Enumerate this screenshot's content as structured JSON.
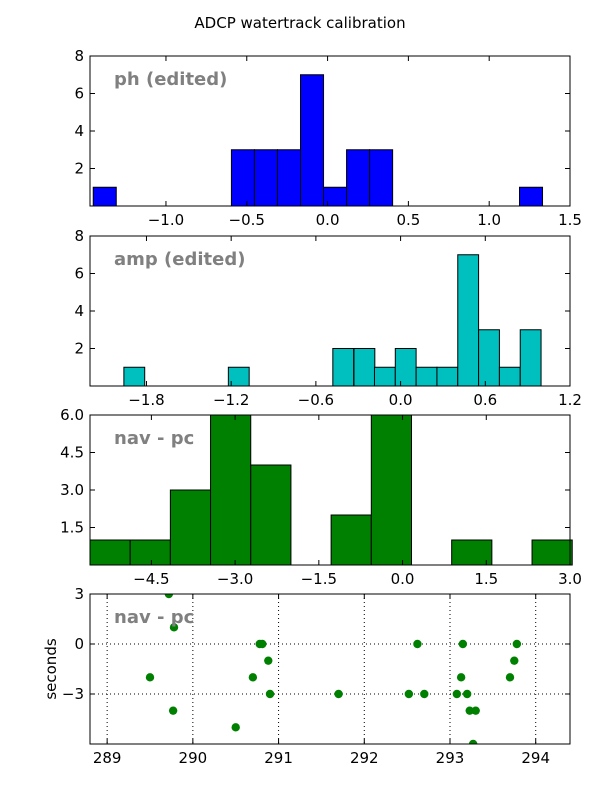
{
  "figure": {
    "title": "ADCP watertrack calibration"
  },
  "chart_data": [
    {
      "type": "bar",
      "panel_label": "ph (edited)",
      "bar_color": "#0000ff",
      "xlim": [
        -1.47,
        1.5
      ],
      "ylim": [
        0,
        8
      ],
      "xticks": [
        -1.0,
        -0.5,
        0.0,
        0.5,
        1.0,
        1.5
      ],
      "xtick_labels": [
        "−1.0",
        "−0.5",
        "0.0",
        "0.5",
        "1.0",
        "1.5"
      ],
      "yticks": [
        2,
        4,
        6,
        8
      ],
      "ytick_labels": [
        "2",
        "4",
        "6",
        "8"
      ],
      "bin_width": 0.1425,
      "bins": [
        {
          "left": -1.45,
          "count": 1
        },
        {
          "left": -0.595,
          "count": 3
        },
        {
          "left": -0.4525,
          "count": 3
        },
        {
          "left": -0.31,
          "count": 3
        },
        {
          "left": -0.1675,
          "count": 7
        },
        {
          "left": -0.025,
          "count": 1
        },
        {
          "left": 0.1175,
          "count": 3
        },
        {
          "left": 0.26,
          "count": 3
        },
        {
          "left": 1.1875,
          "count": 1
        }
      ]
    },
    {
      "type": "bar",
      "panel_label": "amp (edited)",
      "bar_color": "#00bfbf",
      "xlim": [
        -2.2,
        1.2
      ],
      "ylim": [
        0,
        8
      ],
      "xticks": [
        -1.8,
        -1.2,
        -0.6,
        0.0,
        0.6,
        1.2
      ],
      "xtick_labels": [
        "−1.8",
        "−1.2",
        "−0.6",
        "0.0",
        "0.6",
        "1.2"
      ],
      "yticks": [
        2,
        4,
        6,
        8
      ],
      "ytick_labels": [
        "2",
        "4",
        "6",
        "8"
      ],
      "bin_width": 0.1475,
      "bins": [
        {
          "left": -1.96,
          "count": 1
        },
        {
          "left": -1.22,
          "count": 1
        },
        {
          "left": -0.48,
          "count": 2
        },
        {
          "left": -0.33,
          "count": 2
        },
        {
          "left": -0.185,
          "count": 1
        },
        {
          "left": -0.0375,
          "count": 2
        },
        {
          "left": 0.11,
          "count": 1
        },
        {
          "left": 0.2575,
          "count": 1
        },
        {
          "left": 0.405,
          "count": 7
        },
        {
          "left": 0.5525,
          "count": 3
        },
        {
          "left": 0.7,
          "count": 1
        },
        {
          "left": 0.8475,
          "count": 3
        }
      ]
    },
    {
      "type": "bar",
      "panel_label": "nav - pc",
      "bar_color": "#008000",
      "xlim": [
        -5.6,
        3.0
      ],
      "ylim": [
        0,
        6
      ],
      "xticks": [
        -4.5,
        -3.0,
        -1.5,
        0.0,
        1.5,
        3.0
      ],
      "xtick_labels": [
        "−4.5",
        "−3.0",
        "−1.5",
        "0.0",
        "1.5",
        "3.0"
      ],
      "yticks": [
        1.5,
        3.0,
        4.5,
        6.0
      ],
      "ytick_labels": [
        "1.5",
        "3.0",
        "4.5",
        "6.0"
      ],
      "bin_width": 0.72,
      "bins": [
        {
          "left": -5.6,
          "count": 1
        },
        {
          "left": -4.88,
          "count": 1
        },
        {
          "left": -4.16,
          "count": 3
        },
        {
          "left": -3.44,
          "count": 6
        },
        {
          "left": -2.72,
          "count": 4
        },
        {
          "left": -1.28,
          "count": 2
        },
        {
          "left": -0.56,
          "count": 6
        },
        {
          "left": 0.88,
          "count": 1
        },
        {
          "left": 2.32,
          "count": 1
        }
      ]
    },
    {
      "type": "scatter",
      "panel_label": "nav - pc",
      "point_color": "#008000",
      "ylabel": "seconds",
      "grid": true,
      "xlim": [
        288.8,
        294.4
      ],
      "ylim": [
        -6.0,
        3.0
      ],
      "xticks": [
        289,
        290,
        291,
        292,
        293,
        294
      ],
      "xtick_labels": [
        "289",
        "290",
        "291",
        "292",
        "293",
        "294"
      ],
      "yticks": [
        3,
        0,
        -3
      ],
      "ytick_labels": [
        "3",
        "0",
        "−3"
      ],
      "points": [
        [
          289.72,
          3.0
        ],
        [
          289.78,
          1.0
        ],
        [
          289.5,
          -2.0
        ],
        [
          289.77,
          -4.0
        ],
        [
          290.5,
          -5.0
        ],
        [
          290.78,
          0.0
        ],
        [
          290.81,
          0.0
        ],
        [
          290.7,
          -2.0
        ],
        [
          290.88,
          -1.0
        ],
        [
          290.9,
          -3.0
        ],
        [
          291.7,
          -3.0
        ],
        [
          292.52,
          -3.0
        ],
        [
          292.62,
          0.0
        ],
        [
          292.7,
          -3.0
        ],
        [
          293.08,
          -3.0
        ],
        [
          293.13,
          -2.0
        ],
        [
          293.15,
          0.0
        ],
        [
          293.2,
          -3.0
        ],
        [
          293.23,
          -4.0
        ],
        [
          293.3,
          -4.0
        ],
        [
          293.27,
          -6.0
        ],
        [
          293.7,
          -2.0
        ],
        [
          293.75,
          -1.0
        ],
        [
          293.78,
          0.0
        ]
      ]
    }
  ]
}
